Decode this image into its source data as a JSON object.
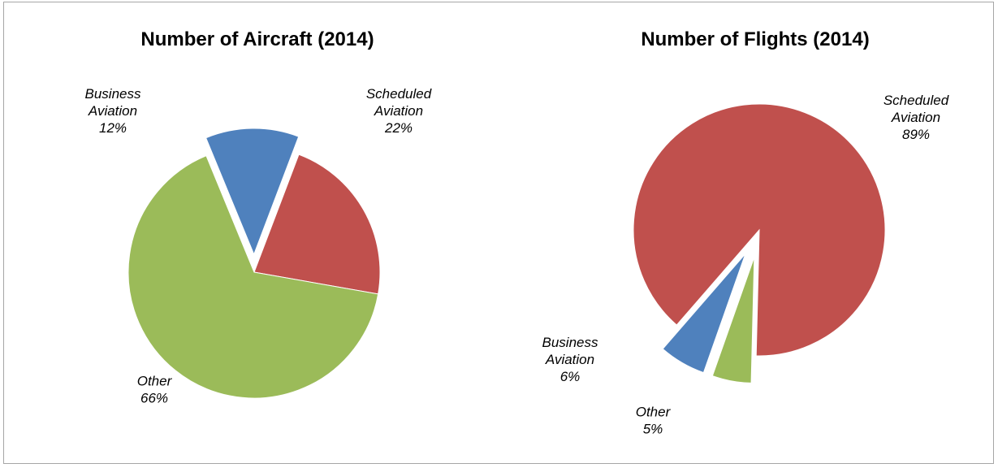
{
  "chart_data": [
    {
      "type": "pie",
      "title": "Number of Aircraft (2014)",
      "slices": [
        {
          "label": [
            "Scheduled",
            "Aviation"
          ],
          "pct": "22%",
          "value": 22,
          "color": "#c0504d"
        },
        {
          "label": [
            "Other"
          ],
          "pct": "66%",
          "value": 66,
          "color": "#9bbb59"
        },
        {
          "label": [
            "Business",
            "Aviation"
          ],
          "pct": "12%",
          "value": 12,
          "color": "#4f81bd"
        }
      ]
    },
    {
      "type": "pie",
      "title": "Number of Flights (2014)",
      "slices": [
        {
          "label": [
            "Scheduled",
            "Aviation"
          ],
          "pct": "89%",
          "value": 89,
          "color": "#c0504d"
        },
        {
          "label": [
            "Other"
          ],
          "pct": "5%",
          "value": 5,
          "color": "#9bbb59"
        },
        {
          "label": [
            "Business",
            "Aviation"
          ],
          "pct": "6%",
          "value": 6,
          "color": "#4f81bd"
        }
      ]
    }
  ]
}
